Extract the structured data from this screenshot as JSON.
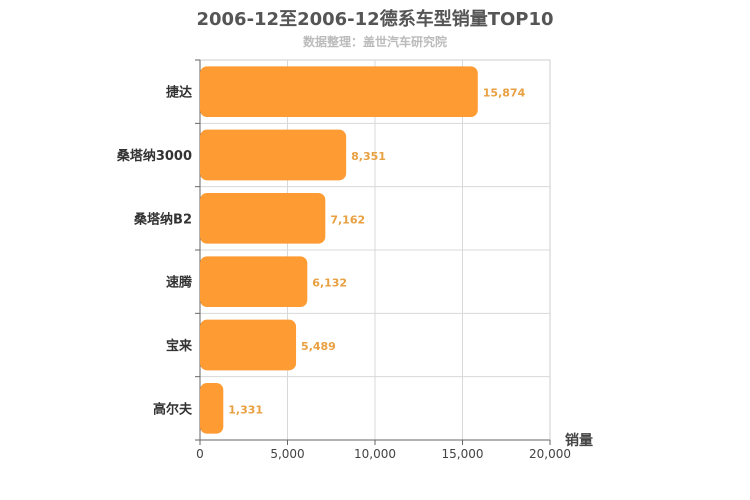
{
  "header": {
    "title": "2006-12至2006-12德系车型销量TOP10",
    "subtitle": "数据整理：盖世汽车研究院"
  },
  "chart_data": {
    "type": "bar",
    "orientation": "horizontal",
    "title": "2006-12至2006-12德系车型销量TOP10",
    "subtitle": "数据整理：盖世汽车研究院",
    "categories": [
      "捷达",
      "桑塔纳3000",
      "桑塔纳B2",
      "速腾",
      "宝来",
      "高尔夫"
    ],
    "values": [
      15874,
      8351,
      7162,
      6132,
      5489,
      1331
    ],
    "value_labels": [
      "15,874",
      "8,351",
      "7,162",
      "6,132",
      "5,489",
      "1,331"
    ],
    "xlabel": "销量",
    "ylabel": "",
    "xlim": [
      0,
      20000
    ],
    "xticks": [
      0,
      5000,
      10000,
      15000,
      20000
    ],
    "xtick_labels": [
      "0",
      "5,000",
      "10,000",
      "15,000",
      "20,000"
    ],
    "grid": true,
    "bar_color": "#ff9b33",
    "label_color": "#e8a040"
  }
}
